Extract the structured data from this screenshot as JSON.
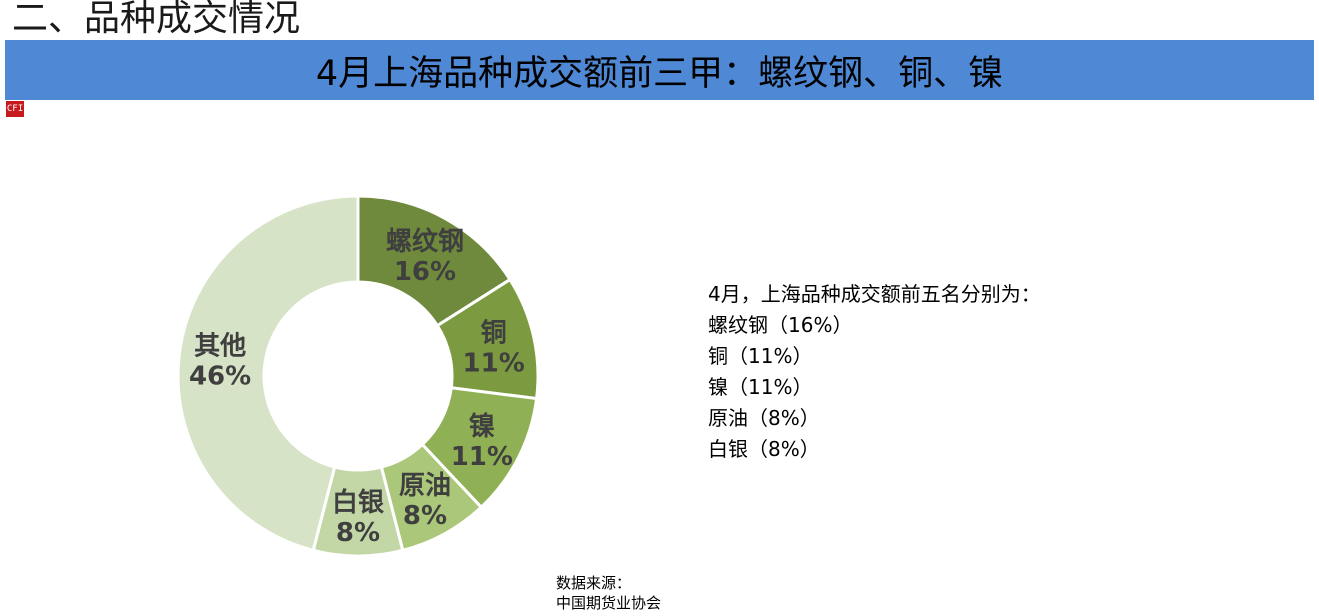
{
  "section": {
    "title": "二、品种成交情况"
  },
  "banner": {
    "title": "4月上海品种成交额前三甲：螺纹钢、铜、镍",
    "background": "#4f88d4"
  },
  "logo": {
    "icon": "cffex-logo-icon",
    "color": "#c8191f"
  },
  "chart_data": {
    "type": "pie",
    "variant": "donut",
    "categories": [
      "螺纹钢",
      "铜",
      "镍",
      "原油",
      "白银",
      "其他"
    ],
    "values": [
      16,
      11,
      11,
      8,
      8,
      46
    ],
    "value_labels": [
      "16%",
      "11%",
      "11%",
      "8%",
      "8%",
      "46%"
    ],
    "colors": [
      "#6f8a3c",
      "#7c9b41",
      "#90b055",
      "#aac77a",
      "#c3d7a6",
      "#d7e3c6"
    ],
    "start_angle": "12 o'clock",
    "direction": "clockwise",
    "legend": "none",
    "data_labels": "inside"
  },
  "summary": {
    "heading": "4月，上海品种成交额前五名分别为：",
    "items": [
      "螺纹钢（16%）",
      "铜（11%）",
      "镍（11%）",
      "原油（8%）",
      "白银（8%）"
    ]
  },
  "source": {
    "label": "数据来源：",
    "org": "中国期货业协会"
  }
}
